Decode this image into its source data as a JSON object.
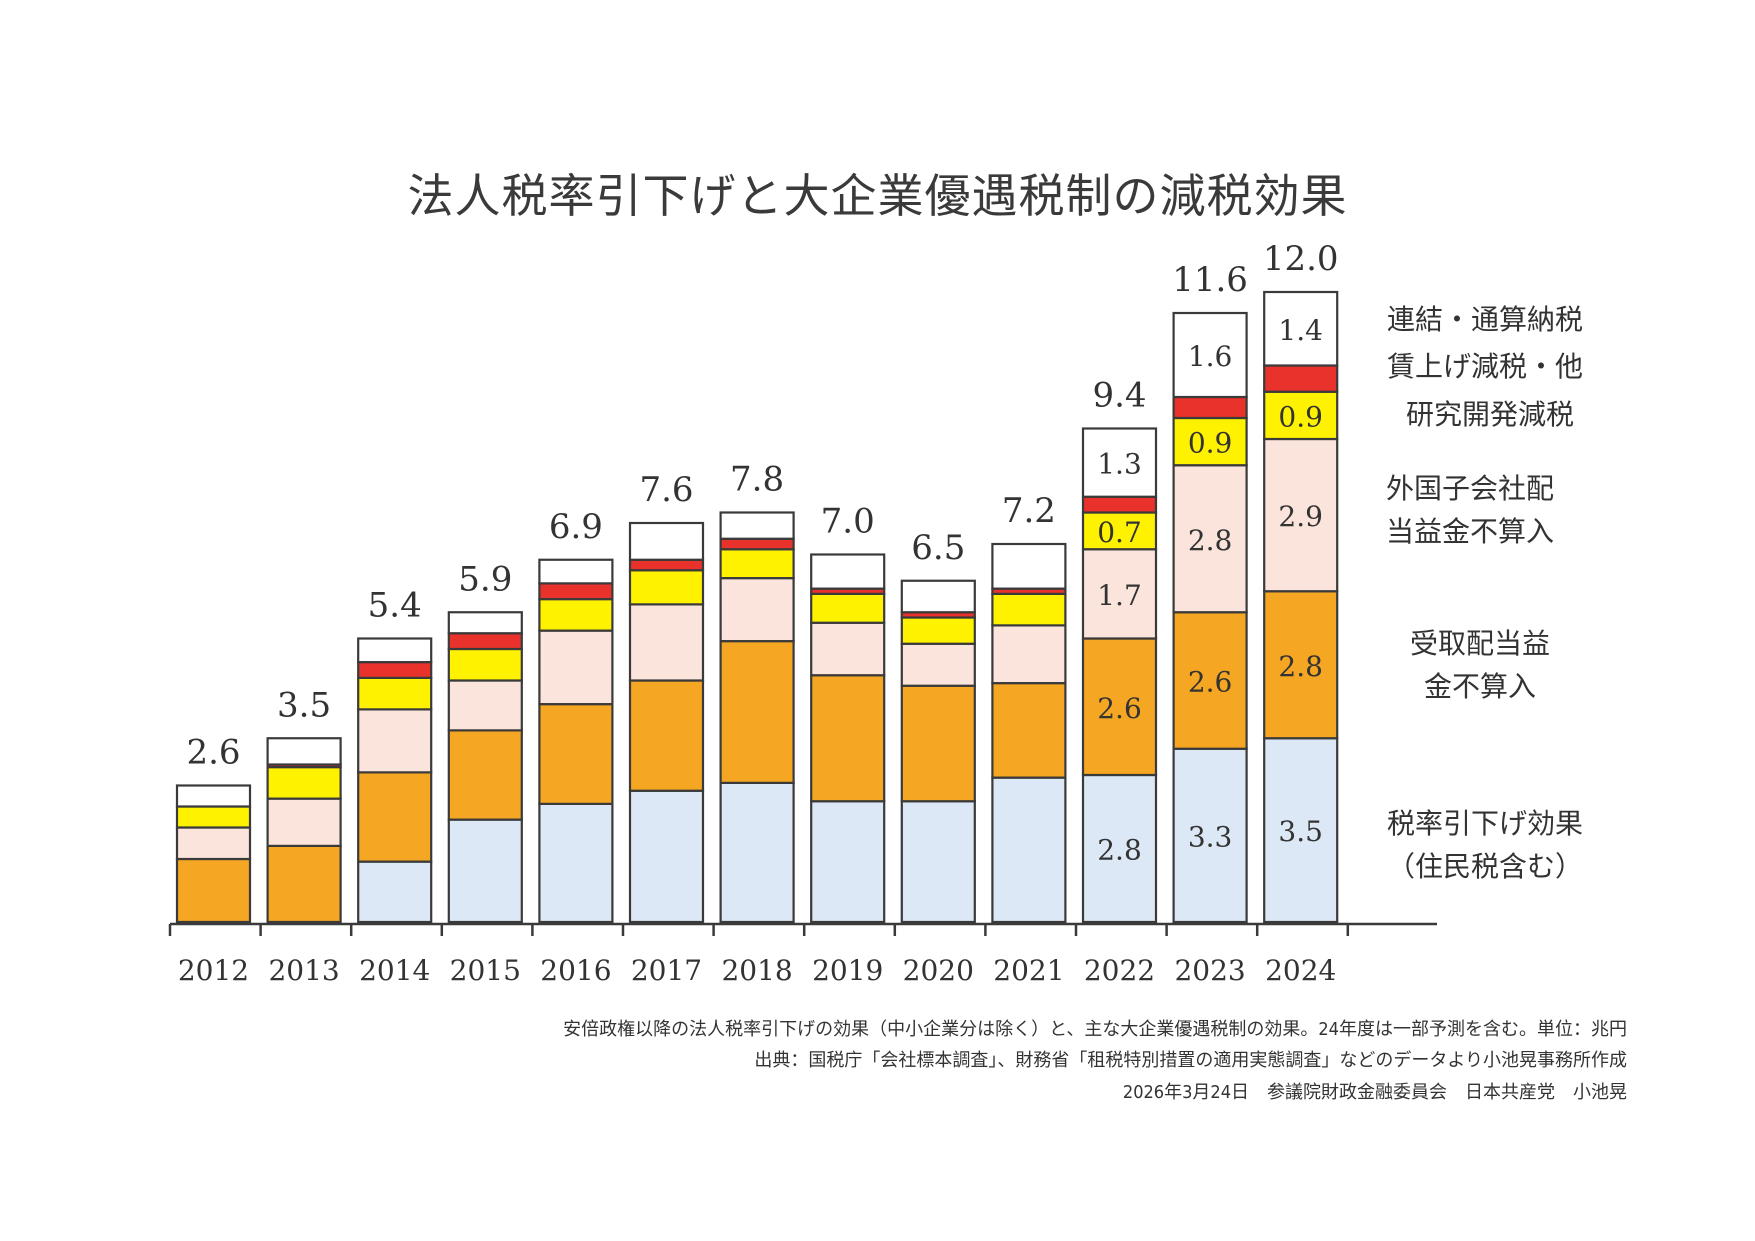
{
  "chart_data": {
    "type": "bar",
    "stacked": true,
    "title": "法人税率引下げと大企業優遇税制の減税効果",
    "xlabel": "",
    "ylabel": "",
    "unit": "兆円",
    "ylim": [
      0,
      12.5
    ],
    "grid": false,
    "legend_position": "right",
    "categories": [
      "2012",
      "2013",
      "2014",
      "2015",
      "2016",
      "2017",
      "2018",
      "2019",
      "2020",
      "2021",
      "2022",
      "2023",
      "2024"
    ],
    "totals": [
      2.6,
      3.5,
      5.4,
      5.9,
      6.9,
      7.6,
      7.8,
      7.0,
      6.5,
      7.2,
      9.4,
      11.6,
      12.0
    ],
    "totals_labels": [
      "2.6",
      "3.5",
      "5.4",
      "5.9",
      "6.9",
      "7.6",
      "7.8",
      "7.0",
      "6.5",
      "7.2",
      "9.4",
      "11.6",
      "12.0"
    ],
    "series": [
      {
        "name": "税率引下げ効果（住民税含む）",
        "color": "#dde8f6",
        "values": [
          0,
          0,
          1.15,
          1.95,
          2.25,
          2.5,
          2.65,
          2.3,
          2.3,
          2.75,
          2.8,
          3.3,
          3.5
        ],
        "labels": [
          "",
          "",
          "",
          "",
          "",
          "",
          "",
          "",
          "",
          "",
          "2.8",
          "3.3",
          "3.5"
        ]
      },
      {
        "name": "受取配当益金不算入",
        "color": "#f5a623",
        "values": [
          1.2,
          1.45,
          1.7,
          1.7,
          1.9,
          2.1,
          2.7,
          2.4,
          2.2,
          1.8,
          2.6,
          2.6,
          2.8
        ],
        "labels": [
          "",
          "",
          "",
          "",
          "",
          "",
          "",
          "",
          "",
          "",
          "2.6",
          "2.6",
          "2.8"
        ]
      },
      {
        "name": "外国子会社配当益金不算入",
        "color": "#fbe4dc",
        "values": [
          0.6,
          0.9,
          1.2,
          0.95,
          1.4,
          1.45,
          1.2,
          1.0,
          0.8,
          1.1,
          1.7,
          2.8,
          2.9
        ],
        "labels": [
          "",
          "",
          "",
          "",
          "",
          "",
          "",
          "",
          "",
          "",
          "1.7",
          "2.8",
          "2.9"
        ]
      },
      {
        "name": "研究開発減税",
        "color": "#fff200",
        "values": [
          0.4,
          0.6,
          0.6,
          0.6,
          0.6,
          0.65,
          0.55,
          0.55,
          0.5,
          0.6,
          0.7,
          0.9,
          0.9
        ],
        "labels": [
          "",
          "",
          "",
          "",
          "",
          "",
          "",
          "",
          "",
          "",
          "0.7",
          "0.9",
          "0.9"
        ]
      },
      {
        "name": "賃上げ減税・他",
        "color": "#e8322b",
        "values": [
          0,
          0.05,
          0.3,
          0.3,
          0.3,
          0.2,
          0.2,
          0.1,
          0.1,
          0.1,
          0.3,
          0.4,
          0.5
        ],
        "labels": [
          "",
          "",
          "",
          "",
          "",
          "",
          "",
          "",
          "",
          "",
          "",
          "",
          ""
        ]
      },
      {
        "name": "連結・通算納税",
        "color": "#ffffff",
        "values": [
          0.4,
          0.5,
          0.45,
          0.4,
          0.45,
          0.7,
          0.5,
          0.65,
          0.6,
          0.85,
          1.3,
          1.6,
          1.4
        ],
        "labels": [
          "",
          "",
          "",
          "",
          "",
          "",
          "",
          "",
          "",
          "",
          "1.3",
          "1.6",
          "1.4"
        ]
      }
    ]
  },
  "legend": {
    "consolidated": "連結・通算納税",
    "wage": "賃上げ減税・他",
    "rnd": "研究開発減税",
    "foreign_line1": "外国子会社配",
    "foreign_line2": "当益金不算入",
    "dividend_line1": "受取配当益",
    "dividend_line2": "金不算入",
    "rate_line1": "税率引下げ効果",
    "rate_line2": "（住民税含む）"
  },
  "footer": {
    "note": "安倍政権以降の法人税率引下げの効果（中小企業分は除く）と、主な大企業優遇税制の効果。24年度は一部予測を含む。単位：兆円",
    "source": "出典：国税庁「会社標本調査」、財務省「租税特別措置の適用実態調査」などのデータより小池晃事務所作成",
    "credit": "2026年3月24日　参議院財政金融委員会　日本共産党　小池晃"
  }
}
